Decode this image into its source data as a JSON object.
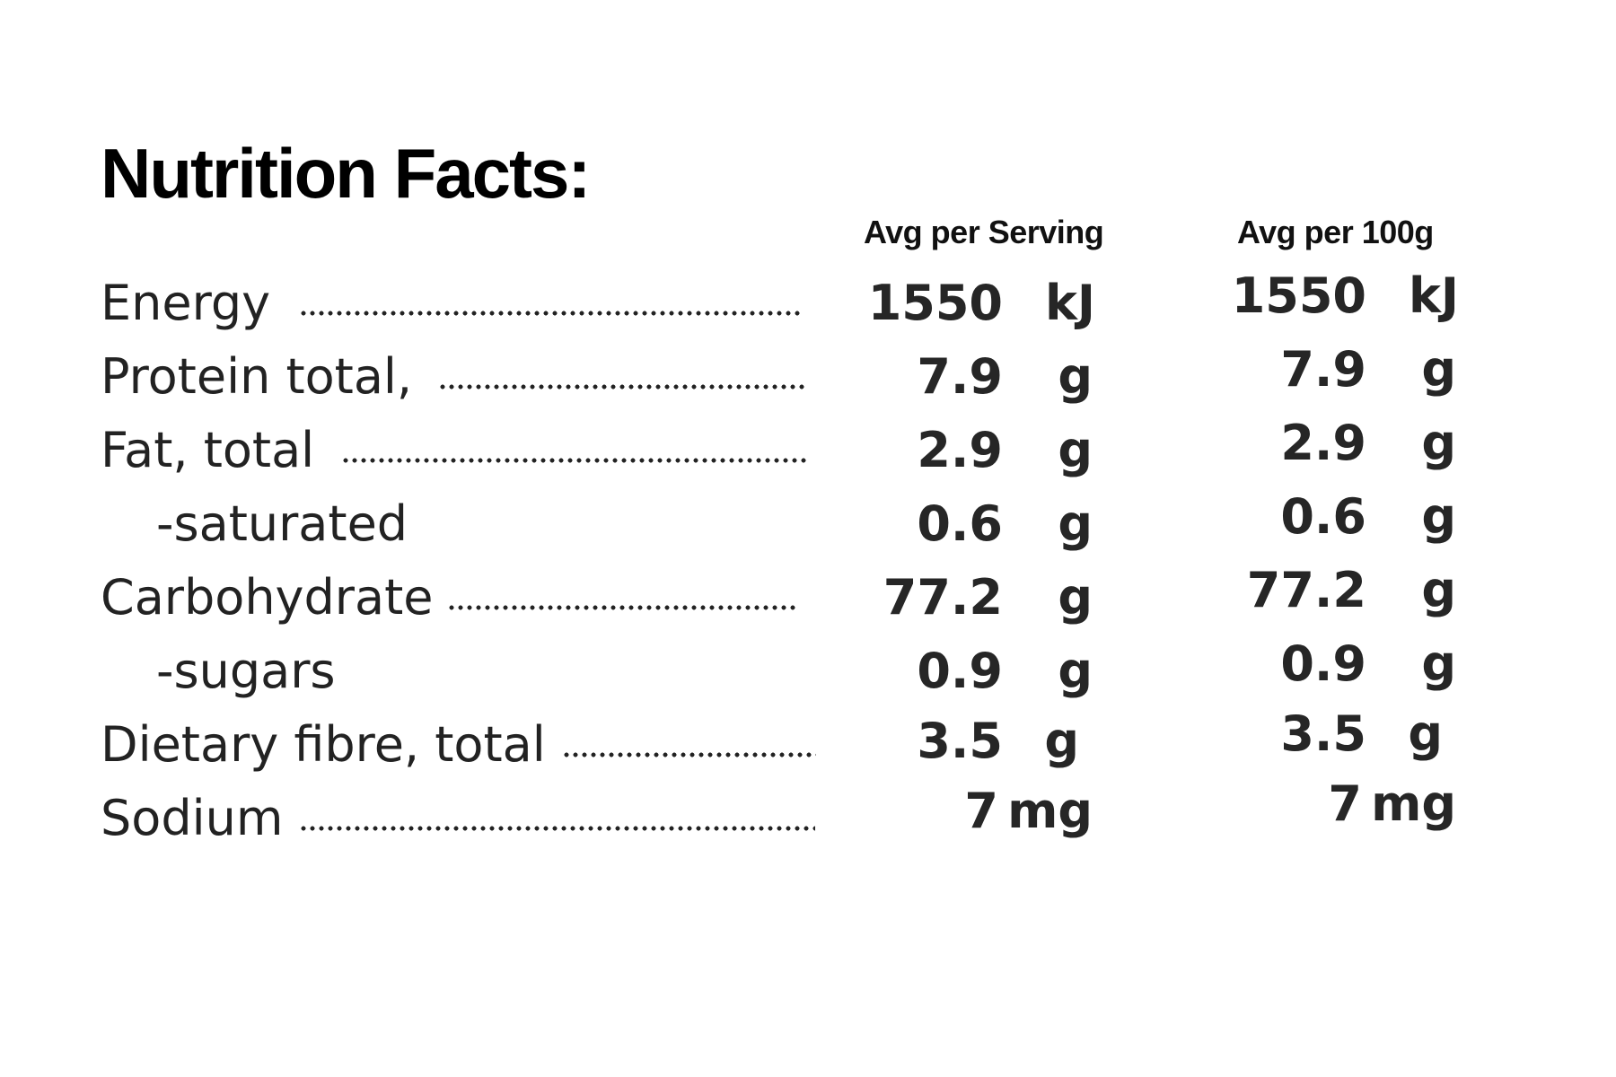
{
  "title": "Nutrition Facts:",
  "columns": {
    "serving": "Avg per Serving",
    "per100g": "Avg per 100g"
  },
  "rows": [
    {
      "label": "Energy",
      "serving": "1550",
      "serving_unit": "kJ",
      "per100g": "1550",
      "per100g_unit": "kJ"
    },
    {
      "label": "Protein total,",
      "serving": "7.9",
      "serving_unit": "g",
      "per100g": "7.9",
      "per100g_unit": "g"
    },
    {
      "label": "Fat, total",
      "serving": "2.9",
      "serving_unit": "g",
      "per100g": "2.9",
      "per100g_unit": "g"
    },
    {
      "label": "-saturated",
      "serving": "0.6",
      "serving_unit": "g",
      "per100g": "0.6",
      "per100g_unit": "g"
    },
    {
      "label": "Carbohydrate",
      "serving": "77.2",
      "serving_unit": "g",
      "per100g": "77.2",
      "per100g_unit": "g"
    },
    {
      "label": "-sugars",
      "serving": "0.9",
      "serving_unit": "g",
      "per100g": "0.9",
      "per100g_unit": "g"
    },
    {
      "label": "Dietary fibre, total",
      "serving": "3.5",
      "serving_unit": "g",
      "per100g": "3.5",
      "per100g_unit": "g"
    },
    {
      "label": "Sodium",
      "serving": "7",
      "serving_unit": "mg",
      "per100g": "7",
      "per100g_unit": "mg"
    }
  ]
}
